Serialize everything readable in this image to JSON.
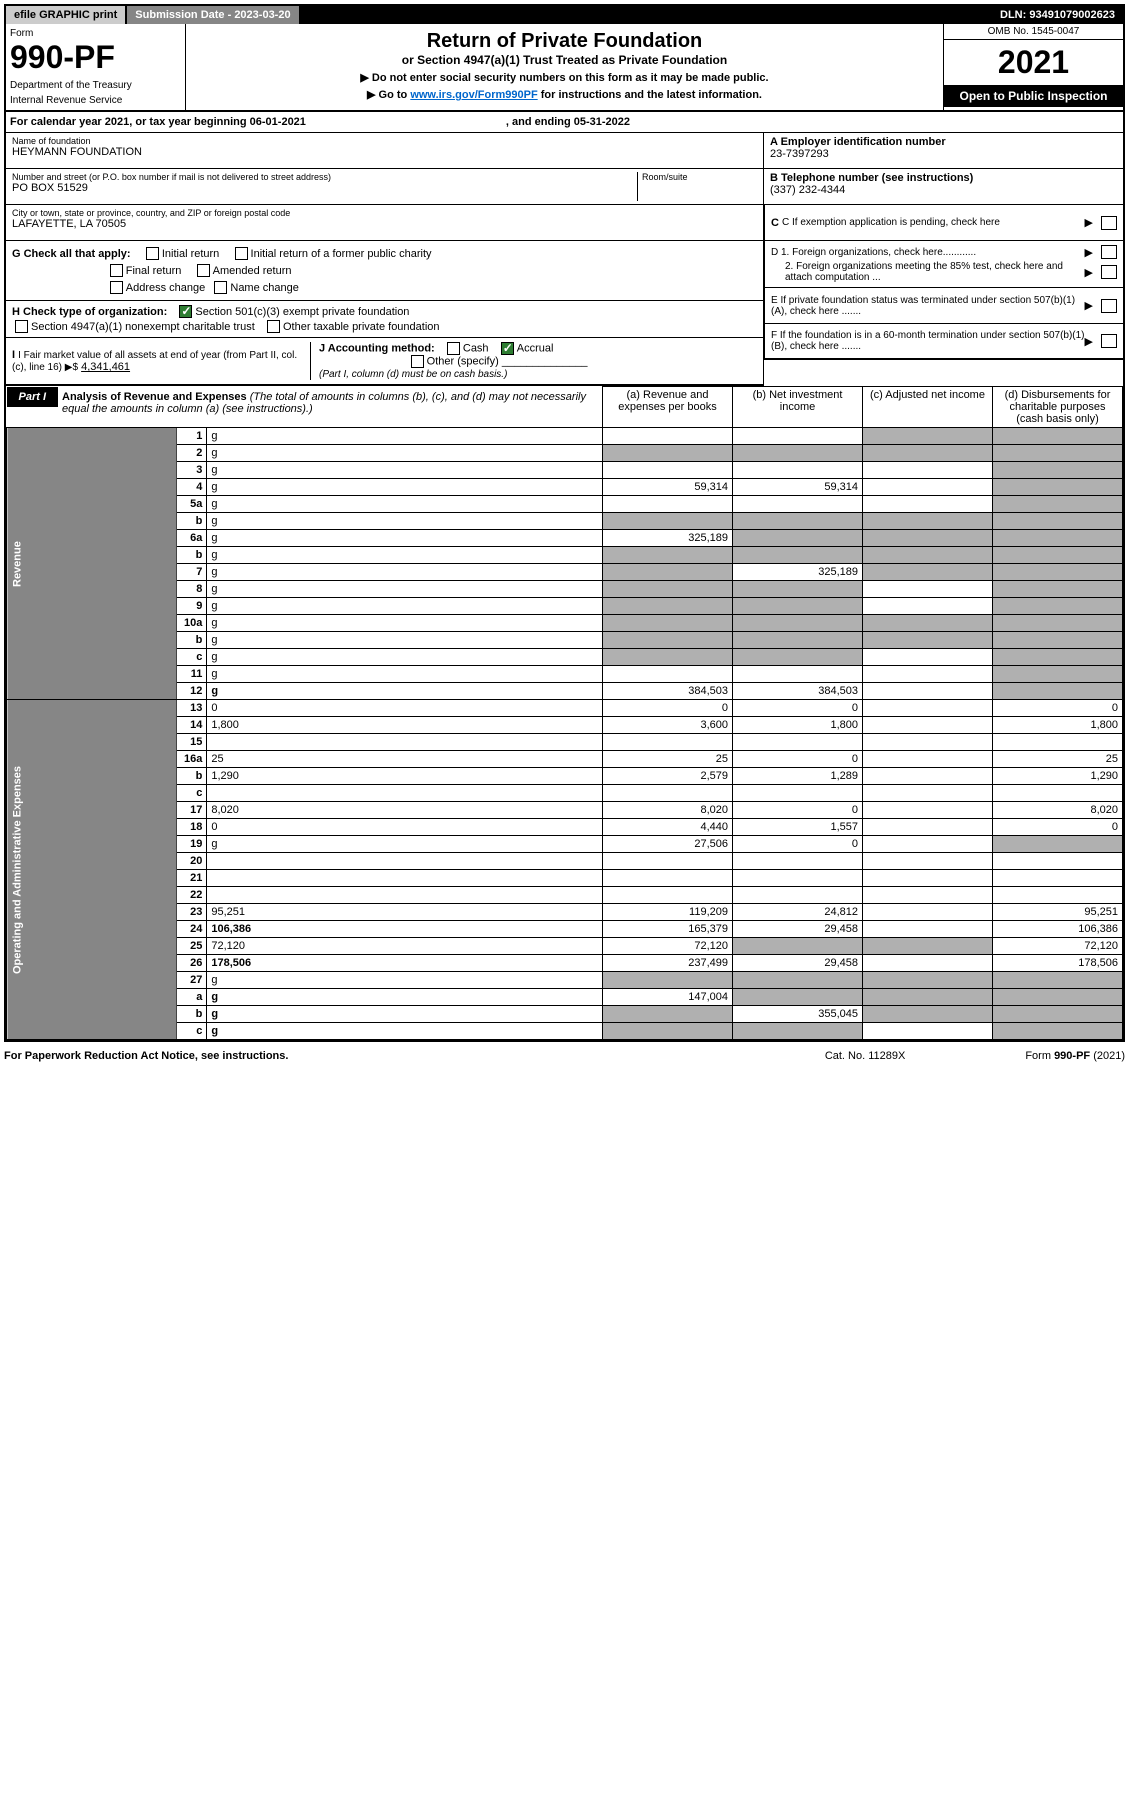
{
  "topbar": {
    "efile": "efile GRAPHIC print",
    "submission": "Submission Date - 2023-03-20",
    "dln": "DLN: 93491079002623"
  },
  "header": {
    "form_label": "Form",
    "form_number": "990-PF",
    "dept1": "Department of the Treasury",
    "dept2": "Internal Revenue Service",
    "title": "Return of Private Foundation",
    "subtitle": "or Section 4947(a)(1) Trust Treated as Private Foundation",
    "instr1": "▶ Do not enter social security numbers on this form as it may be made public.",
    "instr2_pre": "▶ Go to ",
    "instr2_link": "www.irs.gov/Form990PF",
    "instr2_post": " for instructions and the latest information.",
    "omb": "OMB No. 1545-0047",
    "year": "2021",
    "open": "Open to Public Inspection"
  },
  "cal_year": {
    "text": "For calendar year 2021, or tax year beginning 06-01-2021",
    "ending": ", and ending 05-31-2022"
  },
  "entity": {
    "name_label": "Name of foundation",
    "name": "HEYMANN FOUNDATION",
    "addr_label": "Number and street (or P.O. box number if mail is not delivered to street address)",
    "addr": "PO BOX 51529",
    "room_label": "Room/suite",
    "city_label": "City or town, state or province, country, and ZIP or foreign postal code",
    "city": "LAFAYETTE, LA  70505",
    "ein_label": "A Employer identification number",
    "ein": "23-7397293",
    "phone_label": "B Telephone number (see instructions)",
    "phone": "(337) 232-4344",
    "c_label": "C If exemption application is pending, check here",
    "d1": "D 1. Foreign organizations, check here............",
    "d2": "2. Foreign organizations meeting the 85% test, check here and attach computation ...",
    "e_label": "E  If private foundation status was terminated under section 507(b)(1)(A), check here .......",
    "f_label": "F  If the foundation is in a 60-month termination under section 507(b)(1)(B), check here .......",
    "g_label": "G Check all that apply:",
    "g_opts": [
      "Initial return",
      "Initial return of a former public charity",
      "Final return",
      "Amended return",
      "Address change",
      "Name change"
    ],
    "h_label": "H Check type of organization:",
    "h_opt1": "Section 501(c)(3) exempt private foundation",
    "h_opt2": "Section 4947(a)(1) nonexempt charitable trust",
    "h_opt3": "Other taxable private foundation",
    "i_label": "I Fair market value of all assets at end of year (from Part II, col. (c), line 16) ▶$",
    "i_val": "4,341,461",
    "j_label": "J Accounting method:",
    "j_cash": "Cash",
    "j_accrual": "Accrual",
    "j_other": "Other (specify)",
    "j_note": "(Part I, column (d) must be on cash basis.)"
  },
  "part1": {
    "badge": "Part I",
    "title": "Analysis of Revenue and Expenses",
    "note": " (The total of amounts in columns (b), (c), and (d) may not necessarily equal the amounts in column (a) (see instructions).)",
    "col_a": "(a) Revenue and expenses per books",
    "col_b": "(b) Net investment income",
    "col_c": "(c) Adjusted net income",
    "col_d": "(d) Disbursements for charitable purposes (cash basis only)"
  },
  "side_labels": {
    "revenue": "Revenue",
    "expenses": "Operating and Administrative Expenses"
  },
  "rows": [
    {
      "n": "1",
      "d": "g",
      "a": "",
      "b": "",
      "c": "g"
    },
    {
      "n": "2",
      "d": "g",
      "a": "g",
      "b": "g",
      "c": "g",
      "shade": true
    },
    {
      "n": "3",
      "d": "g",
      "a": "",
      "b": "",
      "c": ""
    },
    {
      "n": "4",
      "d": "g",
      "a": "59,314",
      "b": "59,314",
      "c": ""
    },
    {
      "n": "5a",
      "d": "g",
      "a": "",
      "b": "",
      "c": ""
    },
    {
      "n": "b",
      "d": "g",
      "a": "g",
      "b": "g",
      "c": "g",
      "shade": true
    },
    {
      "n": "6a",
      "d": "g",
      "a": "325,189",
      "b": "g",
      "c": "g"
    },
    {
      "n": "b",
      "d": "g",
      "a": "g",
      "b": "g",
      "c": "g",
      "shade": true
    },
    {
      "n": "7",
      "d": "g",
      "a": "g",
      "b": "325,189",
      "c": "g"
    },
    {
      "n": "8",
      "d": "g",
      "a": "g",
      "b": "g",
      "c": ""
    },
    {
      "n": "9",
      "d": "g",
      "a": "g",
      "b": "g",
      "c": ""
    },
    {
      "n": "10a",
      "d": "g",
      "a": "g",
      "b": "g",
      "c": "g",
      "shade": true
    },
    {
      "n": "b",
      "d": "g",
      "a": "g",
      "b": "g",
      "c": "g",
      "shade": true
    },
    {
      "n": "c",
      "d": "g",
      "a": "g",
      "b": "g",
      "c": ""
    },
    {
      "n": "11",
      "d": "g",
      "a": "",
      "b": "",
      "c": ""
    },
    {
      "n": "12",
      "d": "g",
      "a": "384,503",
      "b": "384,503",
      "c": "",
      "bold": true
    },
    {
      "n": "13",
      "d": "0",
      "a": "0",
      "b": "0",
      "c": ""
    },
    {
      "n": "14",
      "d": "1,800",
      "a": "3,600",
      "b": "1,800",
      "c": ""
    },
    {
      "n": "15",
      "d": "",
      "a": "",
      "b": "",
      "c": ""
    },
    {
      "n": "16a",
      "d": "25",
      "a": "25",
      "b": "0",
      "c": ""
    },
    {
      "n": "b",
      "d": "1,290",
      "a": "2,579",
      "b": "1,289",
      "c": ""
    },
    {
      "n": "c",
      "d": "",
      "a": "",
      "b": "",
      "c": ""
    },
    {
      "n": "17",
      "d": "8,020",
      "a": "8,020",
      "b": "0",
      "c": ""
    },
    {
      "n": "18",
      "d": "0",
      "a": "4,440",
      "b": "1,557",
      "c": ""
    },
    {
      "n": "19",
      "d": "g",
      "a": "27,506",
      "b": "0",
      "c": ""
    },
    {
      "n": "20",
      "d": "",
      "a": "",
      "b": "",
      "c": ""
    },
    {
      "n": "21",
      "d": "",
      "a": "",
      "b": "",
      "c": ""
    },
    {
      "n": "22",
      "d": "",
      "a": "",
      "b": "",
      "c": ""
    },
    {
      "n": "23",
      "d": "95,251",
      "a": "119,209",
      "b": "24,812",
      "c": ""
    },
    {
      "n": "24",
      "d": "106,386",
      "a": "165,379",
      "b": "29,458",
      "c": "",
      "bold": true
    },
    {
      "n": "25",
      "d": "72,120",
      "a": "72,120",
      "b": "g",
      "c": "g"
    },
    {
      "n": "26",
      "d": "178,506",
      "a": "237,499",
      "b": "29,458",
      "c": "",
      "bold": true
    },
    {
      "n": "27",
      "d": "g",
      "a": "g",
      "b": "g",
      "c": "g"
    },
    {
      "n": "a",
      "d": "g",
      "a": "147,004",
      "b": "g",
      "c": "g",
      "bold": true
    },
    {
      "n": "b",
      "d": "g",
      "a": "g",
      "b": "355,045",
      "c": "g",
      "bold": true
    },
    {
      "n": "c",
      "d": "g",
      "a": "g",
      "b": "g",
      "c": "",
      "bold": true
    }
  ],
  "footer": {
    "left": "For Paperwork Reduction Act Notice, see instructions.",
    "mid": "Cat. No. 11289X",
    "right": "Form 990-PF (2021)"
  },
  "colors": {
    "gray_cell": "#b0b0b0",
    "side_bg": "#868686",
    "link": "#0066cc"
  }
}
